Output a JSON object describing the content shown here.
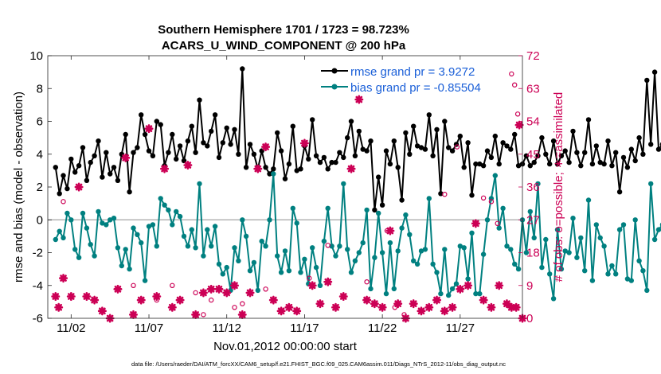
{
  "chart_data": {
    "type": "line",
    "title_line1": "Southern Hemisphere 1701 / 1723 = 98.723%",
    "title_line2": "ACARS_U_WIND_COMPONENT @ 200 hPa",
    "xlabel": "Nov.01,2012 00:00:00 start",
    "ylabel_left": "rmse and bias (model - observation)",
    "ylabel_right": "# of obs: o=possible; ∗=assimilated",
    "footer": "data file: /Users/raeder/DAI/ATM_forcXX/CAM6_setup/f.e21.FHIST_BGC.f09_025.CAM6assim.011/Diags_NTrS_2012-11/obs_diag_output.nc",
    "xlim": [
      0.5,
      31
    ],
    "ylim_left": [
      -6,
      10
    ],
    "ylim_right": [
      0,
      72
    ],
    "x_ticks": [
      {
        "value": 2,
        "label": "11/02"
      },
      {
        "value": 7,
        "label": "11/07"
      },
      {
        "value": 12,
        "label": "11/12"
      },
      {
        "value": 17,
        "label": "11/17"
      },
      {
        "value": 22,
        "label": "11/22"
      },
      {
        "value": 27,
        "label": "11/27"
      }
    ],
    "y_ticks_left": [
      -6,
      -4,
      -2,
      0,
      2,
      4,
      6,
      8,
      10
    ],
    "y_ticks_right": [
      0,
      9,
      18,
      27,
      36,
      45,
      54,
      63,
      72
    ],
    "x_step": 0.25,
    "series": [
      {
        "name": "rmse grand pr = 3.9272",
        "color": "#000000",
        "axis": "left",
        "values": [
          3.2,
          1.6,
          2.7,
          1.9,
          3.7,
          2.9,
          3.3,
          4.4,
          2.4,
          3.5,
          3.9,
          4.8,
          2.6,
          4.1,
          2.8,
          3.2,
          2.4,
          4.0,
          5.2,
          1.7,
          4.1,
          4.4,
          6.4,
          5.2,
          4.2,
          3.9,
          6.0,
          5.8,
          3.3,
          4.1,
          5.2,
          3.7,
          4.5,
          3.6,
          4.8,
          5.7,
          4.1,
          7.3,
          4.7,
          4.5,
          5.4,
          6.4,
          3.8,
          4.7,
          5.6,
          4.6,
          5.5,
          4.0,
          9.2,
          3.2,
          4.6,
          4.0,
          3.1,
          4.2,
          3.2,
          2.8,
          3.1,
          5.3,
          4.2,
          2.5,
          3.4,
          5.7,
          3.0,
          3.1,
          4.5,
          3.7,
          6.1,
          3.9,
          3.5,
          3.8,
          3.1,
          3.5,
          3.5,
          4.1,
          3.8,
          5.0,
          6.0,
          3.9,
          5.4,
          4.3,
          4.2,
          4.8,
          0.6,
          2.6,
          0.9,
          4.2,
          3.4,
          4.8,
          3.2,
          1.2,
          5.3,
          4.0,
          5.7,
          4.5,
          4.4,
          4.3,
          6.4,
          3.9,
          5.5,
          1.6,
          6.0,
          4.4,
          4.2,
          4.6,
          5.1,
          3.2,
          4.7,
          1.5,
          3.4,
          3.4,
          3.3,
          4.2,
          3.8,
          5.1,
          3.4,
          4.7,
          4.5,
          4.3,
          5.2,
          3.3,
          3.4,
          3.9,
          3.3,
          3.5,
          3.9,
          5.0,
          4.0,
          3.4,
          4.8,
          3.4,
          3.9,
          4.2,
          3.5,
          5.4,
          4.1,
          3.3,
          4.1,
          6.1,
          3.4,
          4.5,
          3.5,
          3.4,
          4.8,
          3.3,
          4.1,
          1.7,
          3.8,
          3.2,
          4.3,
          3.6,
          5.0,
          4.0,
          8.5,
          4.6,
          9.0,
          4.3,
          4.6,
          6.0,
          4.9,
          4.1
        ]
      },
      {
        "name": "bias grand pr = -0.85504",
        "color": "#008080",
        "axis": "left",
        "values": [
          -1.2,
          -0.7,
          -1.1,
          0.4,
          0.0,
          -1.8,
          -2.3,
          0.4,
          -0.5,
          -1.5,
          -2.2,
          0.5,
          -0.2,
          -0.3,
          0.0,
          0.1,
          -1.7,
          -2.8,
          -1.8,
          -3.0,
          -0.5,
          -0.9,
          -1.4,
          -3.7,
          -0.4,
          -0.3,
          -1.6,
          1.3,
          0.9,
          0.6,
          -0.3,
          0.5,
          0.2,
          -1.0,
          -1.6,
          -0.6,
          -1.7,
          2.2,
          -2.2,
          -0.6,
          -1.6,
          -0.4,
          -2.7,
          -3.3,
          -2.9,
          -4.3,
          -1.7,
          -2.5,
          0.0,
          -1.0,
          -3.1,
          -2.6,
          -4.3,
          -1.3,
          -1.6,
          0.0,
          2.8,
          -2.2,
          -3.2,
          -1.9,
          -3.1,
          0.7,
          -0.2,
          -3.2,
          -2.4,
          -3.9,
          -1.7,
          -2.9,
          -4.0,
          -1.3,
          0.7,
          -1.6,
          -2.2,
          -1.6,
          2.2,
          -1.8,
          -3.2,
          -2.5,
          -2.0,
          -1.4,
          0.6,
          -4.2,
          -2.3,
          0.4,
          -2.0,
          -4.5,
          -1.4,
          -4.2,
          -1.9,
          -0.5,
          0.3,
          -0.9,
          -2.5,
          -2.7,
          -1.9,
          -1.8,
          1.3,
          -2.7,
          -3.2,
          -4.5,
          -1.8,
          -4.6,
          -4.2,
          -3.9,
          -1.6,
          -1.7,
          -3.6,
          -0.8,
          -4.5,
          -4.5,
          -2.1,
          0.0,
          1.3,
          2.7,
          -0.5,
          0.7,
          -1.6,
          -1.8,
          -2.7,
          -3.0,
          0.0,
          -2.0,
          0.5,
          -1.1,
          2.2,
          -2.9,
          -1.2,
          -3.3,
          -4.8,
          -0.6,
          -3.0,
          -1.9,
          -2.0,
          0.1,
          -2.3,
          -1.1,
          -3.1,
          1.2,
          -3.7,
          -0.3,
          -1.1,
          -1.6,
          -3.3,
          -2.8,
          -3.3,
          -0.6,
          -0.3,
          -3.6,
          -3.7,
          0.0,
          -2.5,
          -3.1,
          -4.3,
          2.2,
          -1.2,
          -0.6,
          -0.3,
          -4.1,
          -1.8,
          0.0
        ]
      }
    ],
    "obs_possible": {
      "color": "#cc0055",
      "axis": "right",
      "marker": "o",
      "points": [
        [
          1.5,
          32
        ],
        [
          6,
          9
        ],
        [
          7.5,
          5
        ],
        [
          8.5,
          9
        ],
        [
          10,
          7
        ],
        [
          10.5,
          1
        ],
        [
          11,
          5
        ],
        [
          12.5,
          3
        ],
        [
          13,
          4
        ],
        [
          14.5,
          8
        ],
        [
          17.3,
          11
        ],
        [
          18.5,
          20
        ],
        [
          21,
          10
        ],
        [
          22.3,
          24
        ],
        [
          22.8,
          3
        ],
        [
          23.4,
          1
        ],
        [
          25,
          3
        ],
        [
          26,
          34
        ],
        [
          26.8,
          47
        ],
        [
          28.5,
          33
        ],
        [
          29,
          32
        ],
        [
          29.4,
          26
        ],
        [
          30.3,
          67
        ],
        [
          30.5,
          64
        ],
        [
          30.7,
          56
        ]
      ]
    },
    "obs_assimilated": {
      "color": "#cc0055",
      "axis": "right",
      "marker": "*",
      "points": [
        [
          1,
          6
        ],
        [
          1.2,
          3
        ],
        [
          1.5,
          11
        ],
        [
          2,
          6
        ],
        [
          2.5,
          36
        ],
        [
          3,
          6
        ],
        [
          3.5,
          5
        ],
        [
          4,
          2
        ],
        [
          4.5,
          0
        ],
        [
          5,
          8
        ],
        [
          5.5,
          44
        ],
        [
          6,
          1
        ],
        [
          6.5,
          5
        ],
        [
          7,
          52
        ],
        [
          7.5,
          6
        ],
        [
          8,
          41
        ],
        [
          8.5,
          3
        ],
        [
          9,
          5
        ],
        [
          9.5,
          42
        ],
        [
          10,
          1
        ],
        [
          10.5,
          7
        ],
        [
          11,
          8
        ],
        [
          11.5,
          8
        ],
        [
          12,
          7
        ],
        [
          12.5,
          9
        ],
        [
          13,
          1
        ],
        [
          13.5,
          7
        ],
        [
          14,
          41
        ],
        [
          14.5,
          47
        ],
        [
          15,
          5
        ],
        [
          15.5,
          2
        ],
        [
          16,
          3
        ],
        [
          16.5,
          2
        ],
        [
          17,
          48
        ],
        [
          17.5,
          9
        ],
        [
          18,
          4
        ],
        [
          18.5,
          10
        ],
        [
          19,
          3
        ],
        [
          19.5,
          6
        ],
        [
          20,
          41
        ],
        [
          20.5,
          60
        ],
        [
          21,
          5
        ],
        [
          21.5,
          4
        ],
        [
          22,
          3
        ],
        [
          22.5,
          24
        ],
        [
          23,
          4
        ],
        [
          23.5,
          0
        ],
        [
          24,
          4
        ],
        [
          24.5,
          2
        ],
        [
          25,
          3
        ],
        [
          25.5,
          5
        ],
        [
          26,
          2
        ],
        [
          26.5,
          3
        ],
        [
          27,
          8
        ],
        [
          27.5,
          9
        ],
        [
          28,
          26
        ],
        [
          28.5,
          5
        ],
        [
          29,
          3
        ],
        [
          29.5,
          9
        ],
        [
          30,
          4
        ],
        [
          30.3,
          3
        ],
        [
          30.6,
          3
        ],
        [
          30.8,
          53
        ],
        [
          31,
          0
        ]
      ]
    }
  }
}
